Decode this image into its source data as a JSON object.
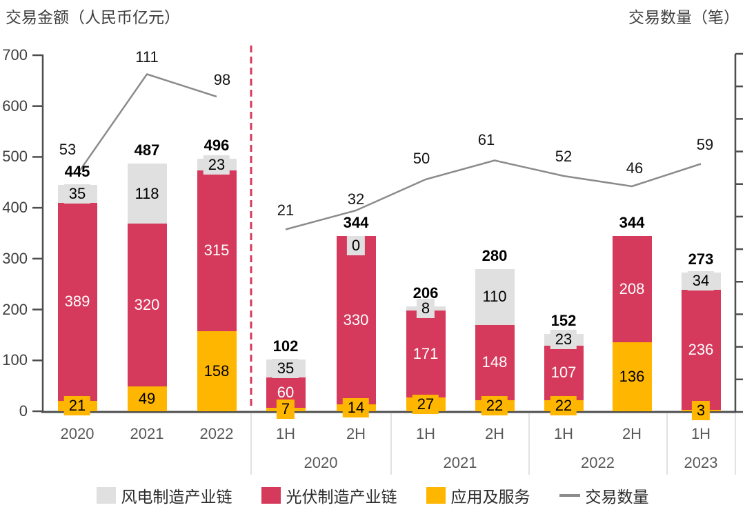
{
  "chart_data": {
    "type": "bar",
    "subtype": "stacked-bars-with-line",
    "stacked": true,
    "y_axis_left": {
      "title": "交易金额（人民币亿元）",
      "min": 0,
      "max": 700,
      "ticks": [
        0,
        100,
        200,
        300,
        400,
        500,
        600,
        700
      ]
    },
    "y_axis_right": {
      "title": "交易数量（笔）",
      "labels_visible": false,
      "tick_count": 12
    },
    "categories": [
      "2020",
      "2021",
      "2022",
      "1H",
      "2H",
      "1H",
      "2H",
      "1H",
      "2H",
      "1H"
    ],
    "category_groups": [
      {
        "label": "2020",
        "from": 3,
        "to": 4
      },
      {
        "label": "2021",
        "from": 5,
        "to": 6
      },
      {
        "label": "2022",
        "from": 7,
        "to": 8
      },
      {
        "label": "2023",
        "from": 9,
        "to": 9
      }
    ],
    "sections": [
      [
        0,
        1,
        2
      ],
      [
        3,
        4,
        5,
        6,
        7,
        8,
        9
      ]
    ],
    "divider": {
      "style": "dashed",
      "color": "#D5395C",
      "after_index": 2
    },
    "series": [
      {
        "key": "wind",
        "name": "风电制造产业链",
        "color": "#E0E0E0",
        "text_color": "#000000",
        "values": [
          35,
          118,
          23,
          35,
          0,
          8,
          110,
          23,
          null,
          34
        ]
      },
      {
        "key": "pv",
        "name": "光伏制造产业链",
        "color": "#D5395C",
        "text_color": "#FFFFFF",
        "values": [
          389,
          320,
          315,
          60,
          330,
          171,
          148,
          107,
          208,
          236
        ]
      },
      {
        "key": "services",
        "name": "应用及服务",
        "color": "#FFB600",
        "text_color": "#000000",
        "values": [
          21,
          49,
          158,
          7,
          14,
          27,
          22,
          22,
          136,
          3
        ]
      }
    ],
    "totals": [
      445,
      487,
      496,
      102,
      344,
      206,
      280,
      152,
      344,
      273
    ],
    "line_series": {
      "name": "交易数量",
      "color": "#8B8B8B",
      "values": [
        53,
        111,
        98,
        21,
        32,
        50,
        61,
        52,
        46,
        59
      ]
    },
    "legend": [
      {
        "label": "风电制造产业链",
        "swatch": "square",
        "color": "#E0E0E0"
      },
      {
        "label": "光伏制造产业链",
        "swatch": "square",
        "color": "#D5395C"
      },
      {
        "label": "应用及服务",
        "swatch": "square",
        "color": "#FFB600"
      },
      {
        "label": "交易数量",
        "swatch": "line",
        "color": "#8B8B8B"
      }
    ],
    "colors": {
      "axis": "#4D4D4D",
      "separator": "#D9D9D9",
      "x_label": "#595959"
    }
  }
}
